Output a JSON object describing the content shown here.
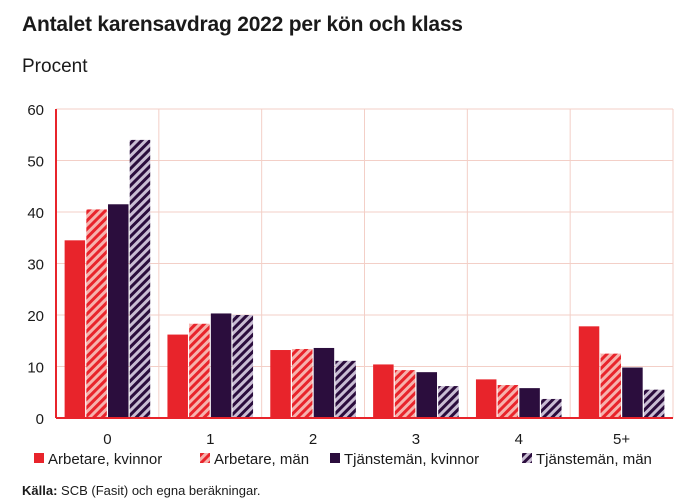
{
  "chart_data": {
    "type": "bar",
    "title": "Antalet karensavdrag 2022 per kön och klass",
    "subtitle": "Procent",
    "categories": [
      "0",
      "1",
      "2",
      "3",
      "4",
      "5+"
    ],
    "ylim": [
      0,
      60
    ],
    "yticks": [
      "0",
      "10",
      "20",
      "30",
      "40",
      "50",
      "60"
    ],
    "grid": true,
    "legend_position": "bottom",
    "series": [
      {
        "name": "Arbetare, kvinnor",
        "values": [
          34.5,
          16.2,
          13.2,
          10.4,
          7.5,
          17.8
        ],
        "color": "#e8242b",
        "pattern": "solid"
      },
      {
        "name": "Arbetare, män",
        "values": [
          40.5,
          18.3,
          13.4,
          9.3,
          6.4,
          12.5
        ],
        "color": "#e8242b",
        "pattern": "hatched"
      },
      {
        "name": "Tjänstemän, kvinnor",
        "values": [
          41.5,
          20.3,
          13.6,
          8.9,
          5.8,
          9.8
        ],
        "color": "#2b0d3d",
        "pattern": "solid"
      },
      {
        "name": "Tjänstemän, män",
        "values": [
          54.0,
          20.0,
          11.1,
          6.2,
          3.7,
          5.5
        ],
        "color": "#2b0d3d",
        "pattern": "hatched"
      }
    ],
    "gridline_color": "#f3cfc7",
    "axis_color": "#e8242b"
  },
  "source": {
    "label": "Källa:",
    "text": "SCB (Fasit) och egna beräkningar."
  }
}
